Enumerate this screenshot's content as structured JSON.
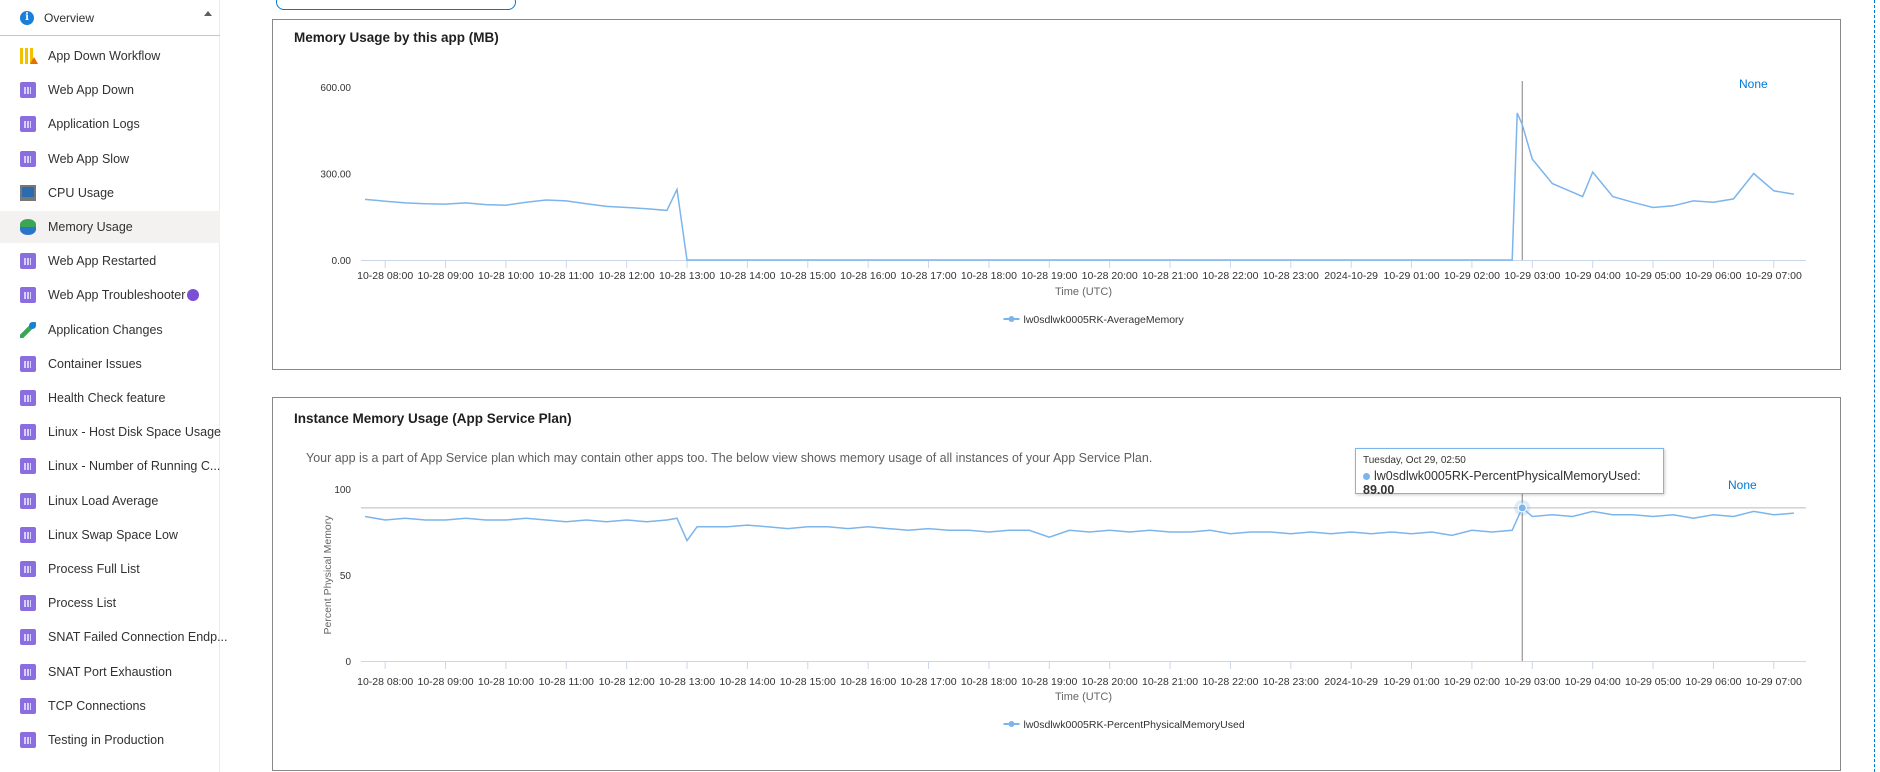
{
  "sidebar": {
    "overview": "Overview",
    "items": [
      {
        "label": "App Down Workflow",
        "icon": "bar-chart-warning-icon"
      },
      {
        "label": "Web App Down",
        "icon": "diagnostic-report-icon"
      },
      {
        "label": "Application Logs",
        "icon": "diagnostic-report-icon"
      },
      {
        "label": "Web App Slow",
        "icon": "diagnostic-report-icon"
      },
      {
        "label": "CPU Usage",
        "icon": "monitor-icon"
      },
      {
        "label": "Memory Usage",
        "icon": "memory-icon",
        "selected": true
      },
      {
        "label": "Web App Restarted",
        "icon": "diagnostic-report-icon"
      },
      {
        "label": "Web App Troubleshooter",
        "icon": "diagnostic-report-icon",
        "badge": true
      },
      {
        "label": "Application Changes",
        "icon": "changes-icon"
      },
      {
        "label": "Container Issues",
        "icon": "diagnostic-report-icon"
      },
      {
        "label": "Health Check feature",
        "icon": "diagnostic-report-icon"
      },
      {
        "label": "Linux - Host Disk Space Usage",
        "icon": "diagnostic-report-icon"
      },
      {
        "label": "Linux - Number of Running C...",
        "icon": "diagnostic-report-icon"
      },
      {
        "label": "Linux Load Average",
        "icon": "diagnostic-report-icon"
      },
      {
        "label": "Linux Swap Space Low",
        "icon": "diagnostic-report-icon"
      },
      {
        "label": "Process Full List",
        "icon": "diagnostic-report-icon"
      },
      {
        "label": "Process List",
        "icon": "diagnostic-report-icon"
      },
      {
        "label": "SNAT Failed Connection Endp...",
        "icon": "diagnostic-report-icon"
      },
      {
        "label": "SNAT Port Exhaustion",
        "icon": "diagnostic-report-icon"
      },
      {
        "label": "TCP Connections",
        "icon": "diagnostic-report-icon"
      },
      {
        "label": "Testing in Production",
        "icon": "diagnostic-report-icon"
      }
    ]
  },
  "colors": {
    "series": "#7cb5ec",
    "accent": "#0078d4",
    "selected_bg": "#f3f2f1"
  },
  "chart_data": [
    {
      "type": "line",
      "title": "Memory Usage by this app (MB)",
      "xlabel": "Time (UTC)",
      "ylabel": "",
      "ylim": [
        0,
        600
      ],
      "xlim": [
        "10-28 07:36",
        "10-29 07:32"
      ],
      "yticks": [
        "0.00",
        "300.00",
        "600.00"
      ],
      "xticks": [
        "10-28 08:00",
        "10-28 09:00",
        "10-28 10:00",
        "10-28 11:00",
        "10-28 12:00",
        "10-28 13:00",
        "10-28 14:00",
        "10-28 15:00",
        "10-28 16:00",
        "10-28 17:00",
        "10-28 18:00",
        "10-28 19:00",
        "10-28 20:00",
        "10-28 21:00",
        "10-28 22:00",
        "10-28 23:00",
        "2024-10-29",
        "10-29 01:00",
        "10-29 02:00",
        "10-29 03:00",
        "10-29 04:00",
        "10-29 05:00",
        "10-29 06:00",
        "10-29 07:00"
      ],
      "legend_action": "None",
      "hover_time": "10-29 02:50",
      "series": [
        {
          "name": "lw0sdlwk0005RK-AverageMemory",
          "points": [
            [
              "10-28 07:40",
              210
            ],
            [
              "10-28 08:00",
              204
            ],
            [
              "10-28 08:20",
              198
            ],
            [
              "10-28 08:40",
              195
            ],
            [
              "10-28 09:00",
              194
            ],
            [
              "10-28 09:20",
              198
            ],
            [
              "10-28 09:40",
              192
            ],
            [
              "10-28 10:00",
              190
            ],
            [
              "10-28 10:20",
              200
            ],
            [
              "10-28 10:40",
              208
            ],
            [
              "10-28 11:00",
              205
            ],
            [
              "10-28 11:20",
              195
            ],
            [
              "10-28 11:40",
              186
            ],
            [
              "10-28 12:00",
              182
            ],
            [
              "10-28 12:20",
              178
            ],
            [
              "10-28 12:40",
              172
            ],
            [
              "10-28 12:50",
              245
            ],
            [
              "10-28 13:00",
              0
            ],
            [
              "10-29 02:40",
              0
            ],
            [
              "10-29 02:45",
              510
            ],
            [
              "10-29 02:50",
              470
            ],
            [
              "10-29 03:00",
              350
            ],
            [
              "10-29 03:20",
              265
            ],
            [
              "10-29 03:40",
              235
            ],
            [
              "10-29 03:50",
              220
            ],
            [
              "10-29 04:00",
              305
            ],
            [
              "10-29 04:20",
              220
            ],
            [
              "10-29 04:40",
              200
            ],
            [
              "10-29 05:00",
              182
            ],
            [
              "10-29 05:20",
              188
            ],
            [
              "10-29 05:40",
              205
            ],
            [
              "10-29 06:00",
              200
            ],
            [
              "10-29 06:20",
              212
            ],
            [
              "10-29 06:40",
              300
            ],
            [
              "10-29 07:00",
              240
            ],
            [
              "10-29 07:20",
              228
            ]
          ]
        }
      ]
    },
    {
      "type": "line",
      "title": "Instance Memory Usage (App Service Plan)",
      "description": "Your app is a part of App Service plan which may contain other apps too. The below view shows memory usage of all instances of your App Service Plan.",
      "xlabel": "Time (UTC)",
      "ylabel": "Percent Physical Memory",
      "ylim": [
        0,
        100
      ],
      "xlim": [
        "10-28 07:36",
        "10-29 07:32"
      ],
      "yticks": [
        "0",
        "50",
        "100"
      ],
      "xticks": [
        "10-28 08:00",
        "10-28 09:00",
        "10-28 10:00",
        "10-28 11:00",
        "10-28 12:00",
        "10-28 13:00",
        "10-28 14:00",
        "10-28 15:00",
        "10-28 16:00",
        "10-28 17:00",
        "10-28 18:00",
        "10-28 19:00",
        "10-28 20:00",
        "10-28 21:00",
        "10-28 22:00",
        "10-28 23:00",
        "2024-10-29",
        "10-29 01:00",
        "10-29 02:00",
        "10-29 03:00",
        "10-29 04:00",
        "10-29 05:00",
        "10-29 06:00",
        "10-29 07:00"
      ],
      "legend_action": "None",
      "hover_time": "10-29 02:50",
      "tooltip": {
        "date": "Tuesday, Oct 29, 02:50",
        "series": "lw0sdlwk0005RK-PercentPhysicalMemoryUsed:",
        "value": "89.00"
      },
      "series": [
        {
          "name": "lw0sdlwk0005RK-PercentPhysicalMemoryUsed",
          "points": [
            [
              "10-28 07:40",
              84
            ],
            [
              "10-28 08:00",
              82
            ],
            [
              "10-28 08:20",
              83
            ],
            [
              "10-28 08:40",
              82
            ],
            [
              "10-28 09:00",
              82
            ],
            [
              "10-28 09:20",
              83
            ],
            [
              "10-28 09:40",
              82
            ],
            [
              "10-28 10:00",
              82
            ],
            [
              "10-28 10:20",
              83
            ],
            [
              "10-28 10:40",
              82
            ],
            [
              "10-28 11:00",
              81
            ],
            [
              "10-28 11:20",
              82
            ],
            [
              "10-28 11:40",
              81
            ],
            [
              "10-28 12:00",
              82
            ],
            [
              "10-28 12:20",
              81
            ],
            [
              "10-28 12:40",
              82
            ],
            [
              "10-28 12:50",
              83
            ],
            [
              "10-28 13:00",
              70
            ],
            [
              "10-28 13:10",
              78
            ],
            [
              "10-28 13:20",
              78
            ],
            [
              "10-28 13:40",
              78
            ],
            [
              "10-28 14:00",
              79
            ],
            [
              "10-28 14:20",
              78
            ],
            [
              "10-28 14:40",
              77
            ],
            [
              "10-28 15:00",
              78
            ],
            [
              "10-28 15:20",
              78
            ],
            [
              "10-28 15:40",
              77
            ],
            [
              "10-28 16:00",
              78
            ],
            [
              "10-28 16:20",
              77
            ],
            [
              "10-28 16:40",
              76
            ],
            [
              "10-28 17:00",
              77
            ],
            [
              "10-28 17:20",
              76
            ],
            [
              "10-28 17:40",
              76
            ],
            [
              "10-28 18:00",
              75
            ],
            [
              "10-28 18:20",
              76
            ],
            [
              "10-28 18:40",
              76
            ],
            [
              "10-28 19:00",
              72
            ],
            [
              "10-28 19:20",
              76
            ],
            [
              "10-28 19:40",
              75
            ],
            [
              "10-28 20:00",
              76
            ],
            [
              "10-28 20:20",
              75
            ],
            [
              "10-28 20:40",
              76
            ],
            [
              "10-28 21:00",
              75
            ],
            [
              "10-28 21:20",
              75
            ],
            [
              "10-28 21:40",
              76
            ],
            [
              "10-28 22:00",
              74
            ],
            [
              "10-28 22:20",
              75
            ],
            [
              "10-28 22:40",
              75
            ],
            [
              "10-28 23:00",
              74
            ],
            [
              "10-28 23:20",
              75
            ],
            [
              "10-28 23:40",
              74
            ],
            [
              "10-29 00:00",
              75
            ],
            [
              "10-29 00:20",
              74
            ],
            [
              "10-29 00:40",
              75
            ],
            [
              "10-29 01:00",
              74
            ],
            [
              "10-29 01:20",
              75
            ],
            [
              "10-29 01:40",
              73
            ],
            [
              "10-29 02:00",
              76
            ],
            [
              "10-29 02:20",
              75
            ],
            [
              "10-29 02:40",
              76
            ],
            [
              "10-29 02:50",
              89
            ],
            [
              "10-29 03:00",
              84
            ],
            [
              "10-29 03:20",
              85
            ],
            [
              "10-29 03:40",
              84
            ],
            [
              "10-29 04:00",
              87
            ],
            [
              "10-29 04:20",
              85
            ],
            [
              "10-29 04:40",
              85
            ],
            [
              "10-29 05:00",
              84
            ],
            [
              "10-29 05:20",
              85
            ],
            [
              "10-29 05:40",
              83
            ],
            [
              "10-29 06:00",
              85
            ],
            [
              "10-29 06:20",
              84
            ],
            [
              "10-29 06:40",
              87
            ],
            [
              "10-29 07:00",
              85
            ],
            [
              "10-29 07:20",
              86
            ]
          ]
        }
      ]
    }
  ]
}
